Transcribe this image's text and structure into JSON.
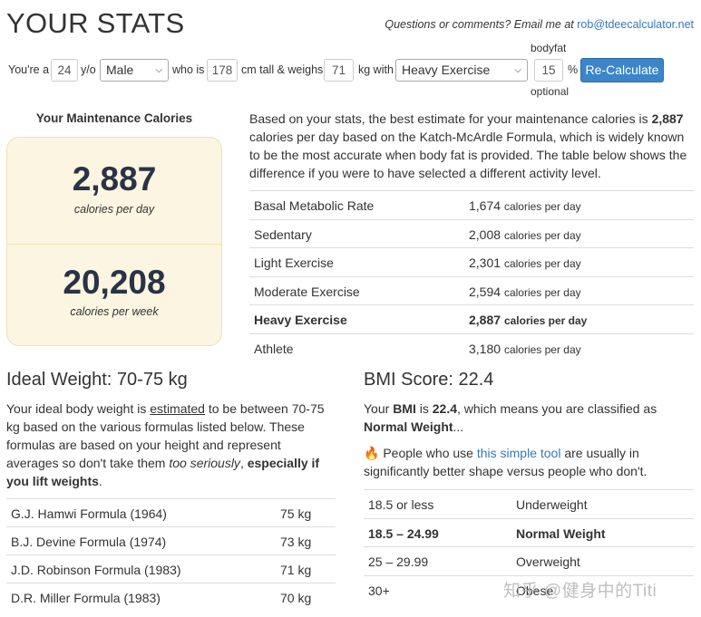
{
  "page": {
    "title": "YOUR STATS",
    "contact_prefix": "Questions or comments? Email me at",
    "contact_email": "rob@tdeecalculator.net"
  },
  "form": {
    "youre_a": "You're a",
    "age": "24",
    "yo": "y/o",
    "gender": "Male",
    "who_is": "who is",
    "height": "178",
    "cm_tall": "cm tall & weighs",
    "weight": "71",
    "kg_with": "kg with",
    "activity": "Heavy Exercise",
    "bodyfat_label": "bodyfat",
    "bodyfat": "15",
    "percent": "%",
    "optional": "optional",
    "recalc_button": "Re-Calculate"
  },
  "maintenance": {
    "title": "Your Maintenance Calories",
    "per_day_value": "2,887",
    "per_day_label": "calories per day",
    "per_week_value": "20,208",
    "per_week_label": "calories per week"
  },
  "intro": {
    "part1": "Based on your stats, the best estimate for your maintenance calories is ",
    "bold_value": "2,887",
    "part2": " calories per day based on the Katch-McArdle Formula, which is widely known to be the most accurate when body fat is provided. The table below shows the difference if you were to have selected a different activity level."
  },
  "activity_table": [
    {
      "name": "Basal Metabolic Rate",
      "value": "1,674",
      "unit": "calories per day"
    },
    {
      "name": "Sedentary",
      "value": "2,008",
      "unit": "calories per day"
    },
    {
      "name": "Light Exercise",
      "value": "2,301",
      "unit": "calories per day"
    },
    {
      "name": "Moderate Exercise",
      "value": "2,594",
      "unit": "calories per day"
    },
    {
      "name": "Heavy Exercise",
      "value": "2,887",
      "unit": "calories per day"
    },
    {
      "name": "Athlete",
      "value": "3,180",
      "unit": "calories per day"
    }
  ],
  "ideal": {
    "heading": "Ideal Weight: 70-75 kg",
    "p1": "Your ideal body weight is ",
    "estimated": "estimated",
    "p2": " to be between 70-75 kg based on the various formulas listed below. These formulas are based on your height and represent averages so don't take them ",
    "too_seriously": "too seriously",
    "p3": ", ",
    "bold": "especially if you lift weights",
    "p4": ".",
    "rows": [
      {
        "name": "G.J. Hamwi Formula (1964)",
        "value": "75 kg"
      },
      {
        "name": "B.J. Devine Formula (1974)",
        "value": "73 kg"
      },
      {
        "name": "J.D. Robinson Formula (1983)",
        "value": "71 kg"
      },
      {
        "name": "D.R. Miller Formula (1983)",
        "value": "70 kg"
      }
    ]
  },
  "bmi": {
    "heading": "BMI Score: 22.4",
    "p1": "Your ",
    "bmi_word": "BMI",
    "p2": " is ",
    "bmi_value": "22.4",
    "p3": ", which means you are classified as ",
    "classification": "Normal Weight",
    "p4": "...",
    "tip_icon": "fire-icon",
    "tip1": " People who use ",
    "tip_link": "this simple tool",
    "tip2": " are usually in significantly better shape versus people who don't.",
    "rows": [
      {
        "range": "18.5 or less",
        "label": "Underweight"
      },
      {
        "range": "18.5 – 24.99",
        "label": "Normal Weight"
      },
      {
        "range": "25 – 29.99",
        "label": "Overweight"
      },
      {
        "range": "30+",
        "label": "Obese"
      }
    ]
  },
  "watermark": "知乎 @健身中的Titi"
}
